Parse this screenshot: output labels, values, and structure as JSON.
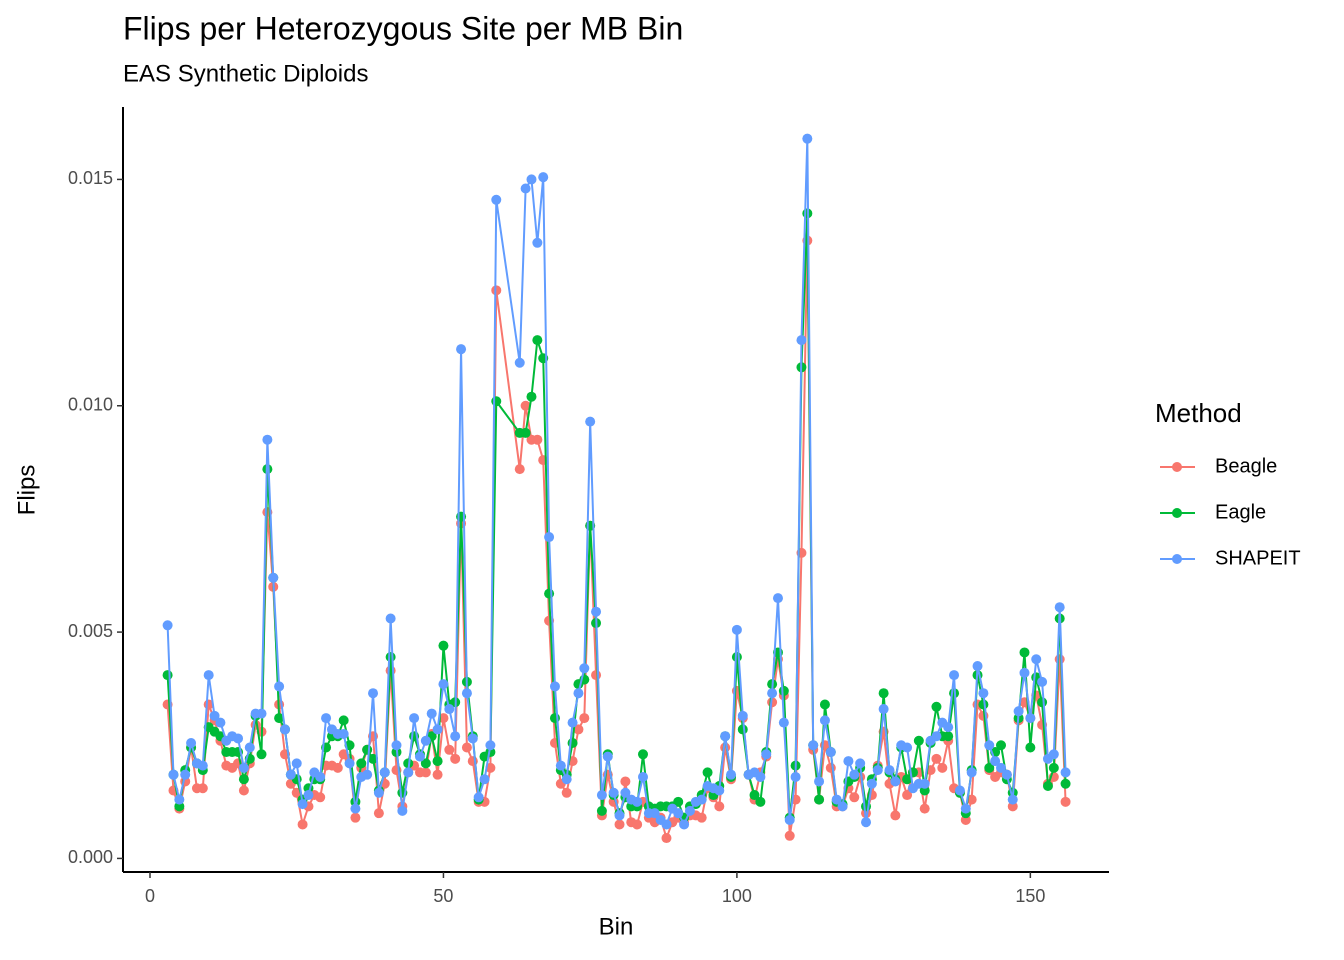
{
  "chart_data": {
    "type": "line",
    "title": "Flips per Heterozygous Site per MB Bin",
    "subtitle": "EAS Synthetic Diploids",
    "x_label": "Bin",
    "y_label": "Flips",
    "legend_title": "Method",
    "legend_position": "right",
    "xlim": [
      -4.6,
      163.4
    ],
    "ylim": [
      -0.0003,
      0.0166
    ],
    "xticks": [
      0,
      50,
      100,
      150
    ],
    "yticks": [
      {
        "value": 0,
        "label": "0.000"
      },
      {
        "value": 0.005,
        "label": "0.005"
      },
      {
        "value": 0.01,
        "label": "0.010"
      },
      {
        "value": 0.015,
        "label": "0.015"
      }
    ],
    "x": [
      3,
      4,
      5,
      6,
      7,
      8,
      9,
      10,
      11,
      12,
      13,
      14,
      15,
      16,
      17,
      18,
      19,
      20,
      21,
      22,
      23,
      24,
      25,
      26,
      27,
      28,
      29,
      30,
      31,
      32,
      33,
      34,
      35,
      36,
      37,
      38,
      39,
      40,
      41,
      42,
      43,
      44,
      45,
      46,
      47,
      48,
      49,
      50,
      51,
      52,
      53,
      54,
      55,
      56,
      57,
      58,
      59,
      63,
      64,
      65,
      66,
      67,
      68,
      69,
      70,
      71,
      72,
      73,
      74,
      75,
      76,
      77,
      78,
      79,
      80,
      81,
      82,
      83,
      84,
      85,
      86,
      87,
      88,
      89,
      90,
      91,
      92,
      93,
      94,
      95,
      96,
      97,
      98,
      99,
      100,
      101,
      102,
      103,
      104,
      105,
      106,
      107,
      108,
      109,
      110,
      111,
      112,
      113,
      114,
      115,
      116,
      117,
      118,
      119,
      120,
      121,
      122,
      123,
      124,
      125,
      126,
      127,
      128,
      129,
      130,
      131,
      132,
      133,
      134,
      135,
      136,
      137,
      138,
      139,
      140,
      141,
      142,
      143,
      144,
      145,
      146,
      147,
      148,
      149,
      150,
      151,
      152,
      153,
      154,
      155,
      156
    ],
    "series": [
      {
        "name": "Beagle",
        "color": "#F8766D",
        "values": [
          0.0034,
          0.0015,
          0.0011,
          0.0017,
          0.00245,
          0.00155,
          0.00155,
          0.0034,
          0.00305,
          0.0026,
          0.00205,
          0.002,
          0.0021,
          0.0015,
          0.0021,
          0.00295,
          0.0028,
          0.00765,
          0.006,
          0.0034,
          0.0023,
          0.00165,
          0.00145,
          0.00075,
          0.00115,
          0.0014,
          0.00135,
          0.00205,
          0.00205,
          0.002,
          0.0023,
          0.0022,
          0.0009,
          0.002,
          0.0024,
          0.0027,
          0.001,
          0.00165,
          0.00415,
          0.00195,
          0.00115,
          0.0019,
          0.00205,
          0.0019,
          0.0019,
          0.00275,
          0.00185,
          0.0031,
          0.0024,
          0.0022,
          0.0074,
          0.00245,
          0.00215,
          0.00125,
          0.00125,
          0.002,
          0.01255,
          0.0086,
          0.01,
          0.00925,
          0.00925,
          0.0088,
          0.00525,
          0.00255,
          0.00165,
          0.00145,
          0.00215,
          0.00285,
          0.0031,
          0.00735,
          0.00405,
          0.00095,
          0.00185,
          0.00125,
          0.00075,
          0.0017,
          0.0008,
          0.00075,
          0.00125,
          0.0009,
          0.0008,
          0.0009,
          0.00045,
          0.0008,
          0.0009,
          0.0008,
          0.00095,
          0.00095,
          0.0009,
          0.00155,
          0.00135,
          0.00115,
          0.00245,
          0.00175,
          0.0037,
          0.0031,
          0.00185,
          0.0013,
          0.0019,
          0.00225,
          0.00345,
          0.0044,
          0.0036,
          0.0005,
          0.0013,
          0.00675,
          0.01365,
          0.0024,
          0.0013,
          0.0025,
          0.002,
          0.00115,
          0.00115,
          0.00155,
          0.00135,
          0.0018,
          0.001,
          0.0014,
          0.00205,
          0.0028,
          0.00165,
          0.00095,
          0.0018,
          0.0014,
          0.0019,
          0.0019,
          0.0011,
          0.00195,
          0.0022,
          0.002,
          0.0026,
          0.00155,
          0.00145,
          0.00085,
          0.0013,
          0.0034,
          0.00315,
          0.00195,
          0.0018,
          0.0019,
          0.00185,
          0.00115,
          0.00305,
          0.00345,
          0.0031,
          0.0036,
          0.00295,
          0.00165,
          0.0018,
          0.0044,
          0.00125
        ]
      },
      {
        "name": "Eagle",
        "color": "#00BA38",
        "values": [
          0.00405,
          0.00185,
          0.00115,
          0.00195,
          0.00245,
          0.0021,
          0.00195,
          0.0029,
          0.0028,
          0.0027,
          0.00235,
          0.00235,
          0.00235,
          0.00175,
          0.0022,
          0.00315,
          0.0023,
          0.0086,
          0.0062,
          0.0031,
          0.00285,
          0.00185,
          0.00175,
          0.0013,
          0.00155,
          0.00175,
          0.00175,
          0.00245,
          0.0027,
          0.0027,
          0.00305,
          0.0025,
          0.00125,
          0.0021,
          0.0024,
          0.0022,
          0.0015,
          0.0019,
          0.00445,
          0.00235,
          0.00145,
          0.0021,
          0.0027,
          0.0023,
          0.0021,
          0.0027,
          0.00215,
          0.0047,
          0.0034,
          0.00345,
          0.00755,
          0.0039,
          0.0027,
          0.0013,
          0.00225,
          0.00235,
          0.0101,
          0.0094,
          0.0094,
          0.0102,
          0.01145,
          0.01105,
          0.00585,
          0.0031,
          0.00195,
          0.00185,
          0.00255,
          0.00385,
          0.00395,
          0.00735,
          0.0052,
          0.00105,
          0.0023,
          0.0014,
          0.001,
          0.00135,
          0.00115,
          0.00115,
          0.0023,
          0.00115,
          0.0011,
          0.00115,
          0.00115,
          0.00115,
          0.00125,
          0.0009,
          0.00115,
          0.0012,
          0.0014,
          0.0019,
          0.0014,
          0.0016,
          0.0027,
          0.0018,
          0.00445,
          0.00285,
          0.00185,
          0.0014,
          0.00125,
          0.00235,
          0.00385,
          0.00455,
          0.0037,
          0.0009,
          0.00205,
          0.01085,
          0.01425,
          0.0025,
          0.0013,
          0.0034,
          0.00235,
          0.00125,
          0.0012,
          0.0017,
          0.0018,
          0.002,
          0.00115,
          0.00175,
          0.002,
          0.00365,
          0.0019,
          0.00175,
          0.00245,
          0.00175,
          0.0019,
          0.0026,
          0.0015,
          0.00255,
          0.00335,
          0.0027,
          0.0027,
          0.00365,
          0.00145,
          0.001,
          0.00195,
          0.00405,
          0.0034,
          0.002,
          0.00235,
          0.0025,
          0.00175,
          0.00145,
          0.0031,
          0.00455,
          0.00245,
          0.004,
          0.00345,
          0.0016,
          0.002,
          0.0053,
          0.00165
        ]
      },
      {
        "name": "SHAPEIT",
        "color": "#619CFF",
        "values": [
          0.00515,
          0.00185,
          0.0013,
          0.00185,
          0.00255,
          0.0021,
          0.00205,
          0.00405,
          0.00315,
          0.003,
          0.0026,
          0.0027,
          0.00265,
          0.002,
          0.00245,
          0.0032,
          0.0032,
          0.00925,
          0.0062,
          0.0038,
          0.00285,
          0.00185,
          0.0021,
          0.0012,
          0.0014,
          0.0019,
          0.0018,
          0.0031,
          0.00285,
          0.00275,
          0.00275,
          0.0021,
          0.0011,
          0.0018,
          0.00185,
          0.00365,
          0.00145,
          0.0019,
          0.0053,
          0.0025,
          0.00105,
          0.0019,
          0.0031,
          0.00225,
          0.0026,
          0.0032,
          0.00285,
          0.00385,
          0.0033,
          0.0027,
          0.01125,
          0.00365,
          0.00265,
          0.00135,
          0.00175,
          0.0025,
          0.01455,
          0.01095,
          0.0148,
          0.015,
          0.0136,
          0.01505,
          0.0071,
          0.0038,
          0.00205,
          0.00175,
          0.003,
          0.00365,
          0.0042,
          0.00965,
          0.00545,
          0.0014,
          0.00225,
          0.00145,
          0.00095,
          0.00145,
          0.0013,
          0.00125,
          0.0018,
          0.001,
          0.001,
          0.00085,
          0.00075,
          0.0011,
          0.001,
          0.00075,
          0.00105,
          0.00125,
          0.0013,
          0.0016,
          0.00155,
          0.0015,
          0.0027,
          0.00185,
          0.00505,
          0.00315,
          0.00185,
          0.0019,
          0.0018,
          0.0023,
          0.00365,
          0.00575,
          0.003,
          0.00085,
          0.0018,
          0.01145,
          0.0159,
          0.0025,
          0.0017,
          0.00305,
          0.00235,
          0.0013,
          0.00115,
          0.00215,
          0.00185,
          0.0021,
          0.0008,
          0.00165,
          0.00195,
          0.0033,
          0.00195,
          0.0017,
          0.0025,
          0.00245,
          0.00155,
          0.00165,
          0.00165,
          0.0026,
          0.0027,
          0.003,
          0.0029,
          0.00405,
          0.0015,
          0.0011,
          0.0019,
          0.00425,
          0.00365,
          0.0025,
          0.00215,
          0.002,
          0.00185,
          0.0013,
          0.00325,
          0.0041,
          0.0031,
          0.0044,
          0.0039,
          0.0022,
          0.0023,
          0.00555,
          0.0019
        ]
      }
    ]
  }
}
